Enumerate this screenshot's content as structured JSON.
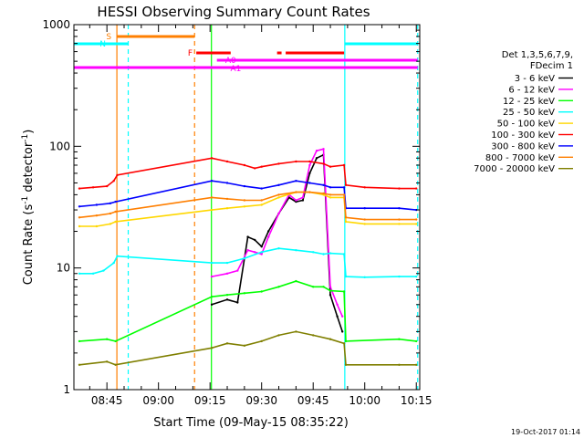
{
  "chart_data": {
    "type": "line",
    "title": "HESSI Observing Summary Count Rates",
    "xlabel": "Start Time (09-May-15 08:35:22)",
    "ylabel_parts": [
      "Count Rate (s",
      "-1",
      " detector",
      "-1",
      ")"
    ],
    "yscale": "log",
    "ylim": [
      1,
      1000
    ],
    "xlim_minutes": [
      35.4,
      136.0
    ],
    "x_ticks": [
      {
        "m": 45,
        "label": "08:45"
      },
      {
        "m": 60,
        "label": "09:00"
      },
      {
        "m": 75,
        "label": "09:15"
      },
      {
        "m": 90,
        "label": "09:30"
      },
      {
        "m": 105,
        "label": "09:45"
      },
      {
        "m": 120,
        "label": "10:00"
      },
      {
        "m": 135,
        "label": "10:15"
      }
    ],
    "y_ticks": [
      {
        "v": 1,
        "label": "1"
      },
      {
        "v": 10,
        "label": "10"
      },
      {
        "v": 100,
        "label": "100"
      },
      {
        "v": 1000,
        "label": "1000"
      }
    ],
    "legend": {
      "position": "right",
      "header": [
        "Det 1,3,5,6,7,9,",
        "FDecim 1"
      ]
    },
    "series": [
      {
        "name": "3 - 6 keV",
        "color": "#000000",
        "points": [
          [
            75.5,
            5
          ],
          [
            80,
            5.5
          ],
          [
            83,
            5.2
          ],
          [
            86,
            18
          ],
          [
            88,
            17
          ],
          [
            90,
            15
          ],
          [
            92,
            20
          ],
          [
            95,
            28
          ],
          [
            98,
            38
          ],
          [
            100,
            35
          ],
          [
            102,
            36
          ],
          [
            104,
            60
          ],
          [
            106,
            80
          ],
          [
            108,
            85
          ],
          [
            110,
            6
          ],
          [
            112,
            4
          ],
          [
            113.5,
            3
          ]
        ]
      },
      {
        "name": "6 - 12 keV",
        "color": "#ff00ff",
        "points": [
          [
            75.5,
            8.5
          ],
          [
            80,
            9
          ],
          [
            83,
            9.5
          ],
          [
            86,
            14
          ],
          [
            88,
            13.5
          ],
          [
            90,
            13
          ],
          [
            92,
            18
          ],
          [
            95,
            28
          ],
          [
            98,
            40
          ],
          [
            100,
            36
          ],
          [
            102,
            38
          ],
          [
            104,
            70
          ],
          [
            106,
            92
          ],
          [
            108,
            95
          ],
          [
            110,
            7
          ],
          [
            112,
            5
          ],
          [
            113.5,
            4
          ]
        ]
      },
      {
        "name": "12 - 25 keV",
        "color": "#00ff00",
        "points": [
          [
            37,
            2.5
          ],
          [
            45,
            2.6
          ],
          [
            47.5,
            2.5
          ],
          [
            75.5,
            5.8
          ],
          [
            80,
            6
          ],
          [
            85,
            6.2
          ],
          [
            90,
            6.4
          ],
          [
            95,
            7
          ],
          [
            100,
            7.8
          ],
          [
            105,
            7
          ],
          [
            108,
            7
          ],
          [
            110,
            6.5
          ],
          [
            114,
            6.4
          ],
          [
            114.5,
            2.5
          ],
          [
            130,
            2.6
          ],
          [
            135,
            2.5
          ]
        ]
      },
      {
        "name": "25 - 50 keV",
        "color": "#00ffff",
        "points": [
          [
            37,
            9
          ],
          [
            41,
            9
          ],
          [
            44,
            9.5
          ],
          [
            47,
            11
          ],
          [
            48,
            12.5
          ],
          [
            75.5,
            11
          ],
          [
            80,
            11
          ],
          [
            85,
            12
          ],
          [
            90,
            13.5
          ],
          [
            95,
            14.5
          ],
          [
            100,
            14
          ],
          [
            105,
            13.5
          ],
          [
            108,
            13
          ],
          [
            110,
            13.2
          ],
          [
            114,
            13
          ],
          [
            114.5,
            8.5
          ],
          [
            120,
            8.4
          ],
          [
            130,
            8.5
          ],
          [
            135,
            8.5
          ]
        ]
      },
      {
        "name": "50 - 100 keV",
        "color": "#ffd700",
        "points": [
          [
            37,
            22
          ],
          [
            42,
            22
          ],
          [
            46,
            23
          ],
          [
            47.5,
            24
          ],
          [
            75.5,
            30
          ],
          [
            80,
            31
          ],
          [
            85,
            32
          ],
          [
            90,
            33
          ],
          [
            95,
            38
          ],
          [
            100,
            42
          ],
          [
            104,
            42
          ],
          [
            108,
            40
          ],
          [
            110,
            38
          ],
          [
            114,
            38
          ],
          [
            114.5,
            24
          ],
          [
            120,
            23
          ],
          [
            130,
            23
          ],
          [
            135,
            23
          ]
        ]
      },
      {
        "name": "100 - 300 keV",
        "color": "#ff0000",
        "points": [
          [
            37,
            45
          ],
          [
            41,
            46
          ],
          [
            45,
            47
          ],
          [
            47,
            52
          ],
          [
            48,
            58
          ],
          [
            75.5,
            80
          ],
          [
            80,
            75
          ],
          [
            85,
            70
          ],
          [
            88,
            66
          ],
          [
            90,
            68
          ],
          [
            95,
            72
          ],
          [
            100,
            75
          ],
          [
            104,
            75
          ],
          [
            108,
            72
          ],
          [
            110,
            68
          ],
          [
            114,
            70
          ],
          [
            114.5,
            48
          ],
          [
            120,
            46
          ],
          [
            130,
            45
          ],
          [
            135,
            45
          ]
        ]
      },
      {
        "name": "300 - 800 keV",
        "color": "#0000ff",
        "points": [
          [
            37,
            32
          ],
          [
            42,
            33
          ],
          [
            46,
            34
          ],
          [
            47.5,
            35
          ],
          [
            75.5,
            52
          ],
          [
            80,
            50
          ],
          [
            85,
            47
          ],
          [
            90,
            45
          ],
          [
            95,
            48
          ],
          [
            100,
            52
          ],
          [
            104,
            50
          ],
          [
            108,
            48
          ],
          [
            110,
            46
          ],
          [
            114,
            46
          ],
          [
            114.5,
            31
          ],
          [
            120,
            31
          ],
          [
            130,
            31
          ],
          [
            135,
            30
          ]
        ]
      },
      {
        "name": "800 - 7000 keV",
        "color": "#ff7f00",
        "points": [
          [
            37,
            26
          ],
          [
            42,
            27
          ],
          [
            46,
            28
          ],
          [
            47.5,
            29
          ],
          [
            75.5,
            38
          ],
          [
            80,
            37
          ],
          [
            85,
            36
          ],
          [
            90,
            36
          ],
          [
            95,
            40
          ],
          [
            100,
            42
          ],
          [
            104,
            42
          ],
          [
            108,
            41
          ],
          [
            110,
            40
          ],
          [
            114,
            40
          ],
          [
            114.5,
            26
          ],
          [
            120,
            25
          ],
          [
            130,
            25
          ],
          [
            135,
            25
          ]
        ]
      },
      {
        "name": "7000 - 20000 keV",
        "color": "#7f7f00",
        "points": [
          [
            37,
            1.6
          ],
          [
            45,
            1.7
          ],
          [
            47.5,
            1.6
          ],
          [
            75.5,
            2.2
          ],
          [
            80,
            2.4
          ],
          [
            85,
            2.3
          ],
          [
            90,
            2.5
          ],
          [
            95,
            2.8
          ],
          [
            100,
            3.0
          ],
          [
            105,
            2.8
          ],
          [
            110,
            2.6
          ],
          [
            114,
            2.4
          ],
          [
            114.5,
            1.6
          ],
          [
            130,
            1.6
          ],
          [
            135,
            1.6
          ]
        ]
      }
    ],
    "annotations": {
      "vertical_lines": [
        {
          "m": 47.9,
          "color": "#ff7f00",
          "dash": false
        },
        {
          "m": 51.2,
          "color": "#00ffff",
          "dash": true
        },
        {
          "m": 70.5,
          "color": "#ff7f00",
          "dash": true
        },
        {
          "m": 75.4,
          "color": "#00ff00",
          "dash": false
        },
        {
          "m": 114.2,
          "color": "#00ffff",
          "dash": false
        },
        {
          "m": 135.4,
          "color": "#00ffff",
          "dash": true
        }
      ],
      "bars": [
        {
          "label": "S",
          "color": "#ff7f00",
          "start": 47.9,
          "end": 70.5,
          "level": 1
        },
        {
          "label": "N",
          "color": "#00ffff",
          "start": 35.4,
          "end": 51.2,
          "level": 2
        },
        {
          "label": "N",
          "color": "#00ffff",
          "start": 114.2,
          "end": 135.4,
          "level": 2,
          "label_hidden": true
        },
        {
          "label": "F",
          "color": "#ff0000",
          "start": 71.0,
          "end": 81.0,
          "level": 3
        },
        {
          "label": "F",
          "color": "#ff0000",
          "start": 94.5,
          "end": 95.8,
          "level": 3,
          "label_hidden": true
        },
        {
          "label": "F",
          "color": "#ff0000",
          "start": 97.0,
          "end": 114.0,
          "level": 3,
          "label_hidden": true
        },
        {
          "label": "A0",
          "color": "#ff00ff",
          "start": 77.0,
          "end": 135.4,
          "level": 4
        },
        {
          "label": "A1",
          "color": "#ff00ff",
          "start": 35.4,
          "end": 135.4,
          "level": 5
        }
      ]
    }
  },
  "footer": {
    "date_stamp": "19-Oct-2017 01:14"
  }
}
